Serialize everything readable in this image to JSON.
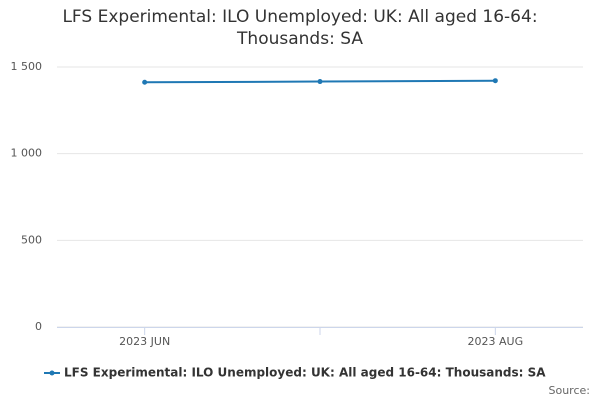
{
  "chart_data": {
    "type": "line",
    "title": "LFS Experimental: ILO Unemployed: UK: All aged 16-64: Thousands: SA",
    "categories": [
      "2023 JUN",
      null,
      "2023 AUG"
    ],
    "series": [
      {
        "name": "LFS Experimental: ILO Unemployed: UK: All aged 16-64: Thousands: SA",
        "color": "#1f78b4",
        "values": [
          1412,
          1416,
          1421
        ]
      }
    ],
    "ylim": [
      0,
      1500
    ],
    "yticks": [
      0,
      500,
      {
        "value": 1000,
        "label": "1 000"
      },
      {
        "value": 1500,
        "label": "1 500"
      }
    ],
    "grid": true,
    "legend": "bottom",
    "source": "Source:"
  }
}
